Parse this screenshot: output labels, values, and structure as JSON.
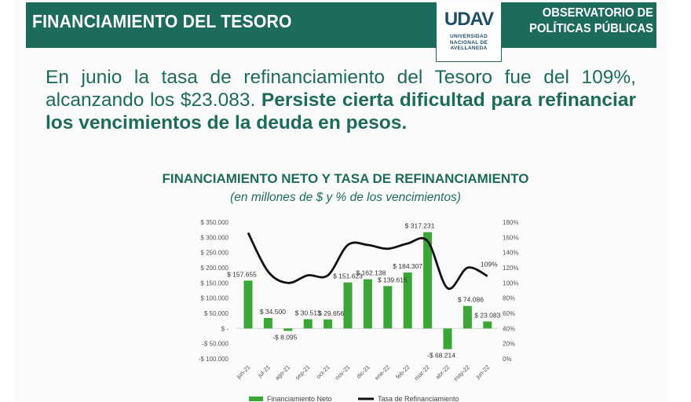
{
  "header": {
    "title": "FINANCIAMIENTO DEL TESORO",
    "logo_mark": "UDAV",
    "logo_lines": [
      "UNIVERSIDAD",
      "NACIONAL DE",
      "AVELLANEDA"
    ],
    "observatory_lines": [
      "OBSERVATORIO DE",
      "POLÍTICAS PÚBLICAS"
    ]
  },
  "headline": {
    "normal": "En junio la tasa de refinanciamiento del Tesoro fue del 109%, alcanzando los $23.083. ",
    "bold": "Persiste cierta dificultad para refinanciar los vencimientos de la deuda en pesos."
  },
  "colors": {
    "brand_green": "#1c6b5b",
    "bar_green": "#3aa636",
    "line_black": "#111111"
  },
  "chart_data": {
    "type": "bar",
    "title": "FINANCIAMIENTO NETO Y TASA DE REFINANCIAMIENTO",
    "subtitle": "(en millones de $ y % de los vencimientos)",
    "categories": [
      "jun-21",
      "jul-21",
      "ago-21",
      "sep-21",
      "oct-21",
      "nov-21",
      "dic-21",
      "ene-22",
      "feb-22",
      "mar-22",
      "abr-22",
      "may-22",
      "jun-22"
    ],
    "series": [
      {
        "name": "Financiamiento Neto",
        "type": "bar",
        "axis": "left",
        "values": [
          157655,
          34500,
          -8095,
          30513,
          29656,
          151623,
          162138,
          139615,
          184307,
          317231,
          -68214,
          74086,
          23083
        ],
        "labels": [
          "$ 157.655",
          "$ 34.500",
          "-$ 8.095",
          "$ 30.513",
          "$ 29.656",
          "$ 151.623",
          "$ 162.138",
          "$ 139.615",
          "$ 184.307",
          "$ 317.231",
          "-$ 68.214",
          "$ 74.086",
          "$ 23.083"
        ]
      },
      {
        "name": "Tasa de Refinanciamiento",
        "type": "line",
        "axis": "right",
        "values": [
          166,
          115,
          100,
          110,
          110,
          150,
          150,
          145,
          152,
          155,
          93,
          120,
          109
        ]
      }
    ],
    "annotations": [
      {
        "category": "jun-22",
        "text": "109%"
      }
    ],
    "y_left": {
      "range": [
        -100000,
        350000
      ],
      "ticks": [
        -100000,
        -50000,
        0,
        50000,
        100000,
        150000,
        200000,
        250000,
        300000,
        350000
      ],
      "tick_labels": [
        "-$ 100.000",
        "-$ 50.000",
        "$ -",
        "$ 50.000",
        "$ 100.000",
        "$ 150.000",
        "$ 200.000",
        "$ 250.000",
        "$ 300.000",
        "$ 350.000"
      ]
    },
    "y_right": {
      "range": [
        0,
        180
      ],
      "ticks": [
        0,
        20,
        40,
        60,
        80,
        100,
        120,
        140,
        160,
        180
      ],
      "tick_labels": [
        "0%",
        "20%",
        "40%",
        "60%",
        "80%",
        "100%",
        "120%",
        "140%",
        "160%",
        "180%"
      ]
    },
    "grid": false,
    "legend": "bottom"
  }
}
